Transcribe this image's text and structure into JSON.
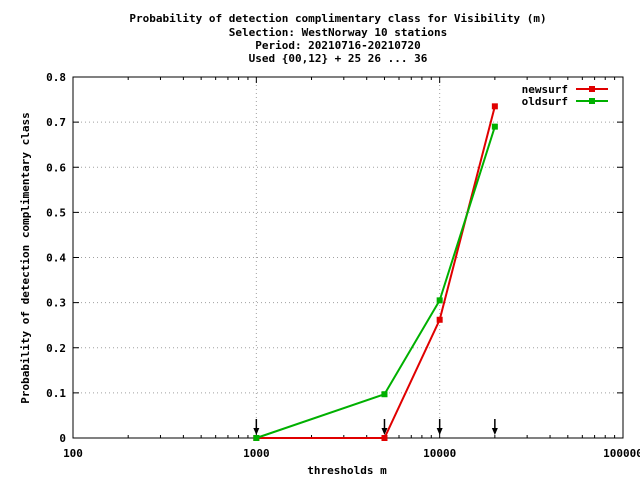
{
  "chart_data": {
    "type": "line",
    "title_lines": [
      "Probability of detection complimentary class  for Visibility (m)",
      "Selection: WestNorway     10 stations",
      "Period: 20210716-20210720",
      "Used {00,12} + 25 26 ... 36"
    ],
    "xlabel": "thresholds m",
    "ylabel": "Probability of detection complimentary class",
    "x_scale": "log",
    "xlim": [
      100,
      100000
    ],
    "ylim": [
      0,
      0.8
    ],
    "x_ticks": [
      100,
      1000,
      10000,
      100000
    ],
    "x_tick_labels": [
      "100",
      "1000",
      "10000",
      "100000"
    ],
    "y_ticks": [
      0,
      0.1,
      0.2,
      0.3,
      0.4,
      0.5,
      0.6,
      0.7,
      0.8
    ],
    "y_tick_labels": [
      "0",
      "0.1",
      "0.2",
      "0.3",
      "0.4",
      "0.5",
      "0.6",
      "0.7",
      "0.8"
    ],
    "grid": true,
    "legend_position": "top-right",
    "x": [
      1000,
      5000,
      10000,
      20000
    ],
    "series": [
      {
        "name": "newsurf",
        "color": "#e00000",
        "values": [
          0.0,
          0.0,
          0.262,
          0.735
        ]
      },
      {
        "name": "oldsurf",
        "color": "#00b000",
        "values": [
          0.0,
          0.097,
          0.305,
          0.69
        ]
      }
    ],
    "arrow_markers_x": [
      1000,
      5000,
      10000,
      20000
    ]
  }
}
